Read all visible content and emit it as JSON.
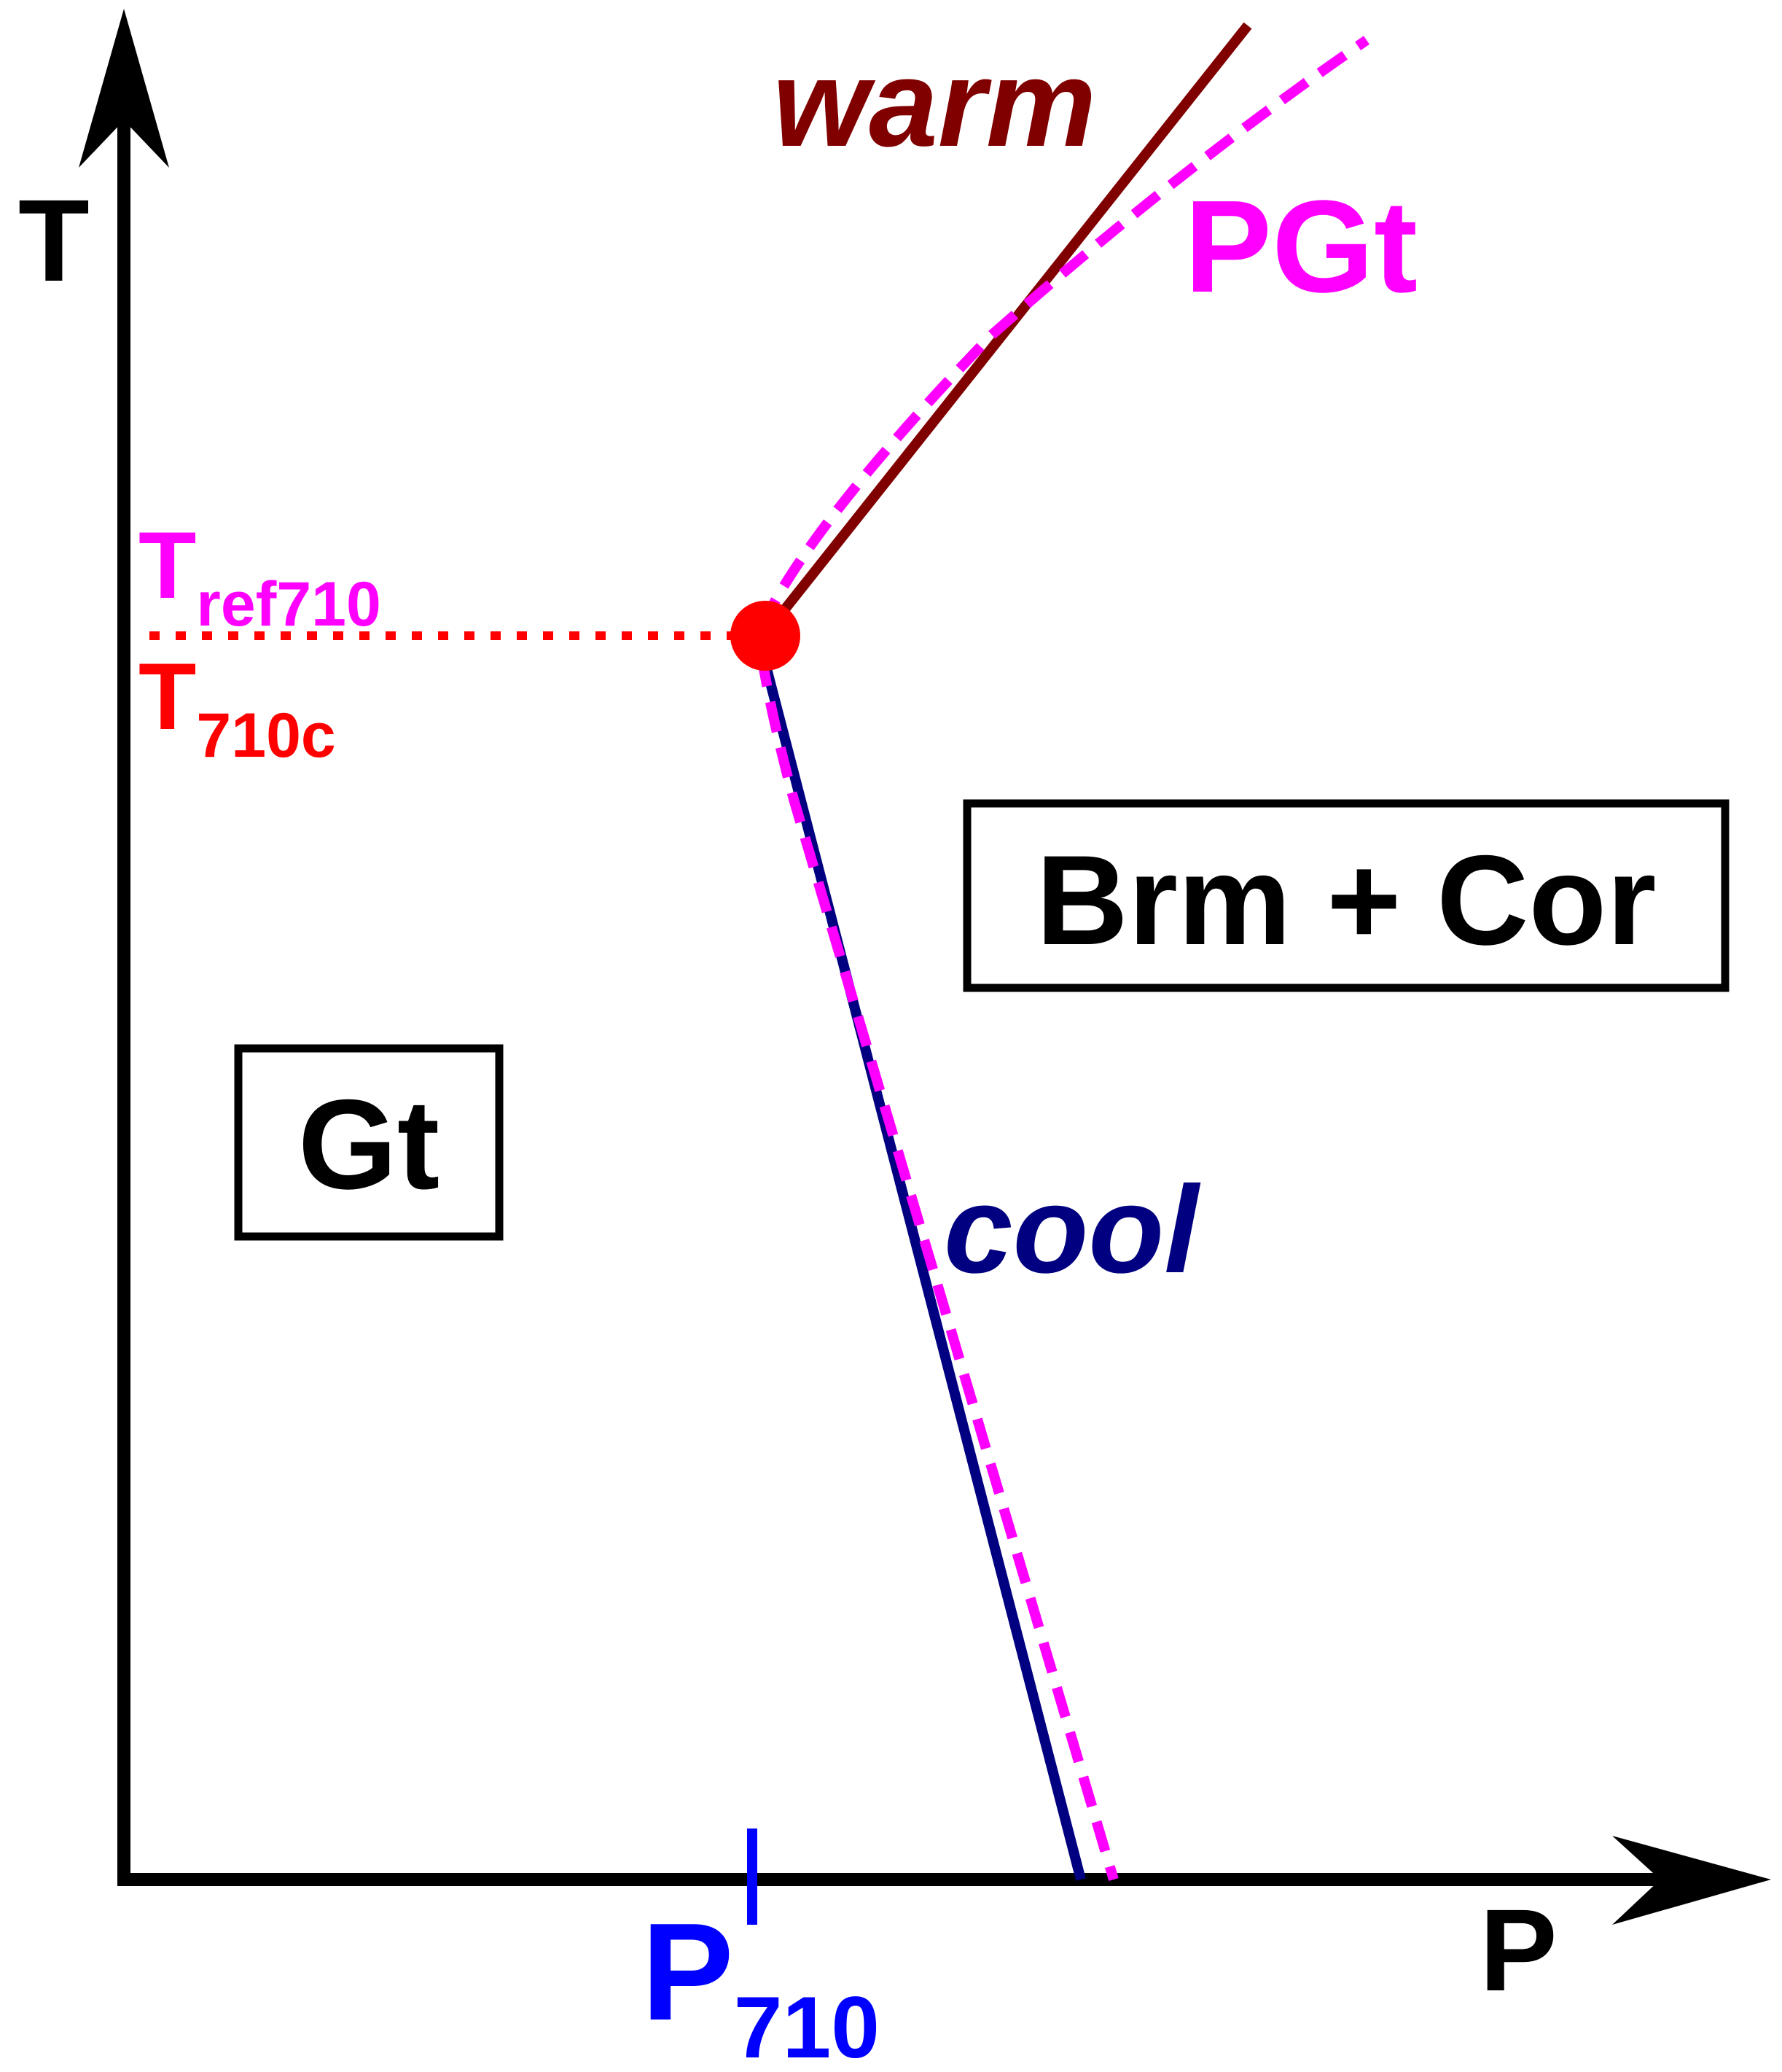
{
  "axes": {
    "y_label": "T",
    "x_label": "P"
  },
  "reference_temperature": {
    "main": "T",
    "subscript": "ref710"
  },
  "transition_temperature": {
    "main": "T",
    "subscript": "710c"
  },
  "pressure_marker": {
    "main": "P",
    "subscript": "710"
  },
  "curves": {
    "warm": "warm",
    "cool": "cool",
    "pgt": "PGt"
  },
  "regions": {
    "left_phase": "Gt",
    "right_phase": "Brm + Cor"
  },
  "colors": {
    "axes": "#000000",
    "warm": "#800000",
    "cool": "#000080",
    "pgt": "#ff00ff",
    "triple_point": "#ff0000",
    "t710c_label": "#ff0000",
    "tref_label": "#ff00ff",
    "p710": "#0000ff"
  }
}
